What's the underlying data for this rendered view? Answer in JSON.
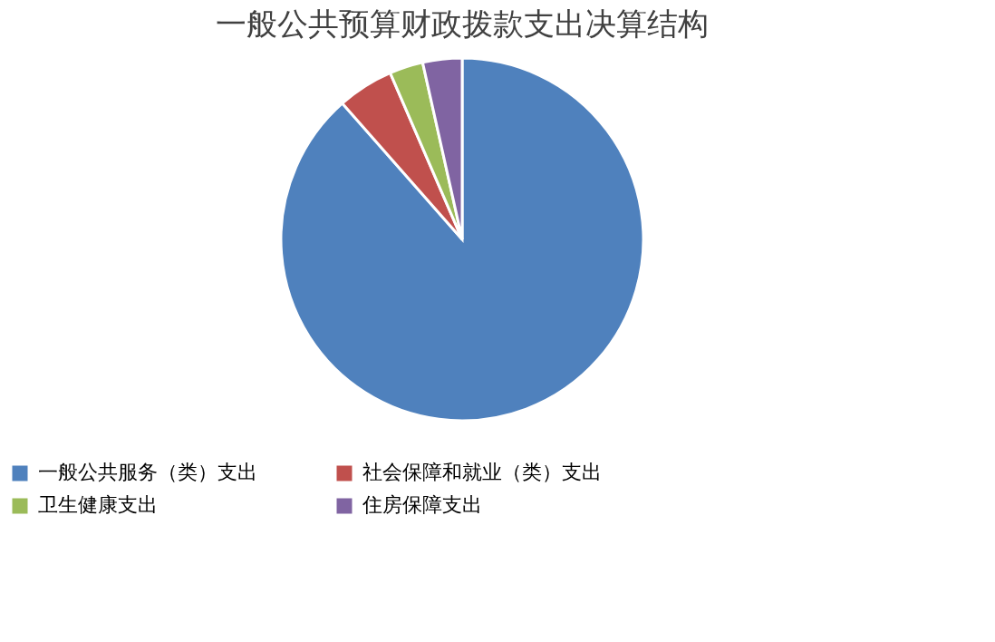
{
  "chart_data": {
    "type": "pie",
    "title": "一般公共预算财政拨款支出决算结构",
    "categories": [
      "一般公共服务（类）支出",
      "社会保障和就业（类）支出",
      "卫生健康支出",
      "住房保障支出"
    ],
    "values": [
      88.5,
      5,
      3,
      3.5
    ],
    "colors": [
      "#4f81bd",
      "#c0504d",
      "#9bbb59",
      "#8064a2"
    ],
    "legend": "bottom"
  }
}
